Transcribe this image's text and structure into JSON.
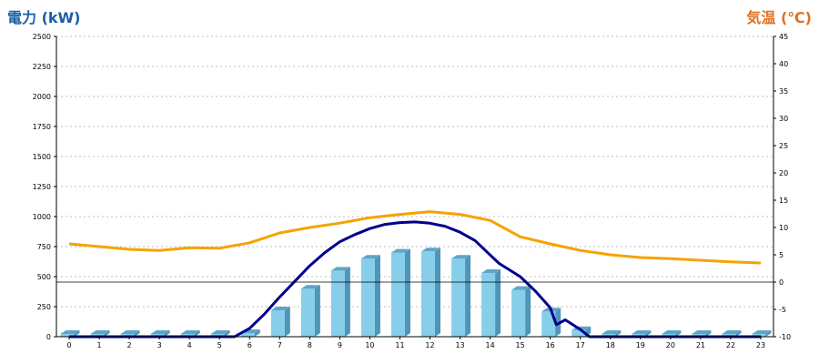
{
  "left_axis_title": "電力 (kW)",
  "right_axis_title": "気温 (℃)",
  "colors": {
    "left_title": "#1a5fa8",
    "right_title": "#e07020",
    "bar_front": "#87ceeb",
    "bar_side": "#4f95b8",
    "bar_top": "#5ea5c8",
    "blue_line": "#00008b",
    "orange_line": "#f5a300"
  },
  "chart_data": {
    "type": "bar",
    "x_ticks": [
      "0",
      "1",
      "2",
      "3",
      "4",
      "5",
      "6",
      "7",
      "8",
      "9",
      "10",
      "11",
      "12",
      "13",
      "14",
      "15",
      "16",
      "17",
      "18",
      "19",
      "20",
      "21",
      "22",
      "23"
    ],
    "left_y_ticks": [
      "0",
      "250",
      "500",
      "750",
      "1000",
      "1250",
      "1500",
      "1750",
      "2000",
      "2250",
      "2500"
    ],
    "right_y_ticks": [
      "-10",
      "-5",
      "0",
      "5",
      "10",
      "15",
      "20",
      "25",
      "30",
      "35",
      "40",
      "45"
    ],
    "left_ylim": [
      0,
      2500
    ],
    "right_ylim": [
      -10,
      45
    ],
    "grid": true,
    "series": [
      {
        "type": "bar",
        "axis": "left",
        "x": [
          0,
          1,
          2,
          3,
          4,
          5,
          6,
          7,
          8,
          9,
          10,
          11,
          12,
          13,
          14,
          15,
          16,
          17,
          18,
          19,
          20,
          21,
          22,
          23
        ],
        "values": [
          0,
          0,
          0,
          0,
          0,
          0,
          30,
          220,
          400,
          550,
          650,
          700,
          710,
          650,
          530,
          390,
          210,
          55,
          0,
          0,
          0,
          0,
          0,
          0
        ]
      },
      {
        "type": "line",
        "axis": "left",
        "x": [
          0,
          1,
          2,
          3,
          4,
          5,
          5.5,
          6,
          6.5,
          7,
          7.5,
          8,
          8.5,
          9,
          9.5,
          10,
          10.5,
          11,
          11.5,
          12,
          12.5,
          13,
          13.5,
          14,
          14.3,
          15,
          15.5,
          16,
          16.2,
          16.5,
          17,
          17.3,
          18,
          19,
          20,
          21,
          22,
          23
        ],
        "values": [
          0,
          0,
          0,
          0,
          0,
          0,
          0,
          70,
          190,
          330,
          460,
          590,
          700,
          790,
          850,
          900,
          935,
          950,
          955,
          945,
          920,
          870,
          800,
          680,
          610,
          500,
          380,
          240,
          100,
          140,
          60,
          0,
          0,
          0,
          0,
          0,
          0,
          0
        ]
      },
      {
        "type": "line",
        "axis": "right",
        "x": [
          0,
          1,
          2,
          3,
          4,
          5,
          6,
          7,
          8,
          9,
          10,
          11,
          12,
          13,
          14,
          15,
          16,
          17,
          18,
          19,
          20,
          21,
          22,
          23
        ],
        "values": [
          7.0,
          6.5,
          6.0,
          5.8,
          6.3,
          6.2,
          7.2,
          9.0,
          10.0,
          10.8,
          11.8,
          12.4,
          12.9,
          12.4,
          11.3,
          8.3,
          7.0,
          5.8,
          5.0,
          4.5,
          4.3,
          4.0,
          3.7,
          3.5
        ]
      }
    ]
  }
}
